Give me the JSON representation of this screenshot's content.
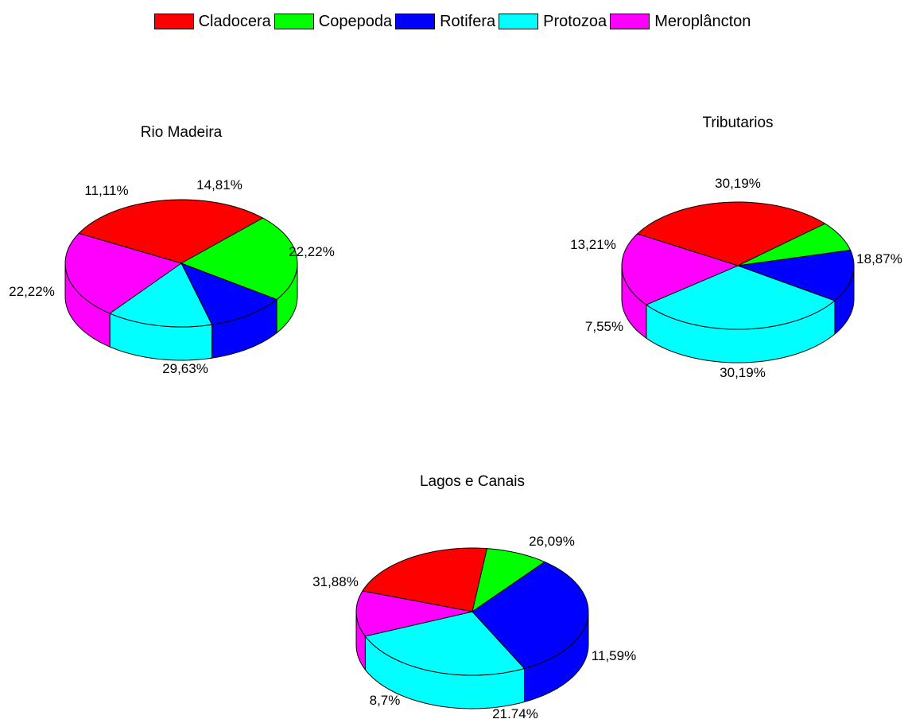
{
  "legend": {
    "items": [
      {
        "label": "Cladocera",
        "color": "#ff0000"
      },
      {
        "label": "Copepoda",
        "color": "#00ff00"
      },
      {
        "label": "Rotifera",
        "color": "#0000ff"
      },
      {
        "label": "Protozoa",
        "color": "#00ffff"
      },
      {
        "label": "Meroplâncton",
        "color": "#ff00ff"
      }
    ]
  },
  "chart_data": [
    {
      "type": "pie",
      "title": "Rio Madeira",
      "categories": [
        "Cladocera",
        "Copepoda",
        "Rotifera",
        "Protozoa",
        "Meroplâncton"
      ],
      "values": [
        29.63,
        22.22,
        11.11,
        14.81,
        22.22
      ],
      "labels": [
        "29,63%",
        "22,22%",
        "11,11%",
        "14,81%",
        "22,22%"
      ]
    },
    {
      "type": "pie",
      "title": "Tributarios",
      "categories": [
        "Cladocera",
        "Copepoda",
        "Rotifera",
        "Protozoa",
        "Meroplâncton"
      ],
      "values": [
        30.19,
        7.55,
        13.21,
        30.19,
        18.87
      ],
      "labels": [
        "30,19%",
        "7,55%",
        "13,21%",
        "30,19%",
        "18,87%"
      ]
    },
    {
      "type": "pie",
      "title": "Lagos e Canais",
      "categories": [
        "Cladocera",
        "Copepoda",
        "Rotifera",
        "Protozoa",
        "Meroplâncton"
      ],
      "values": [
        21.74,
        8.7,
        31.88,
        26.09,
        11.59
      ],
      "labels": [
        "21.74%",
        "8,7%",
        "31,88%",
        "26,09%",
        "11,59%"
      ]
    }
  ]
}
